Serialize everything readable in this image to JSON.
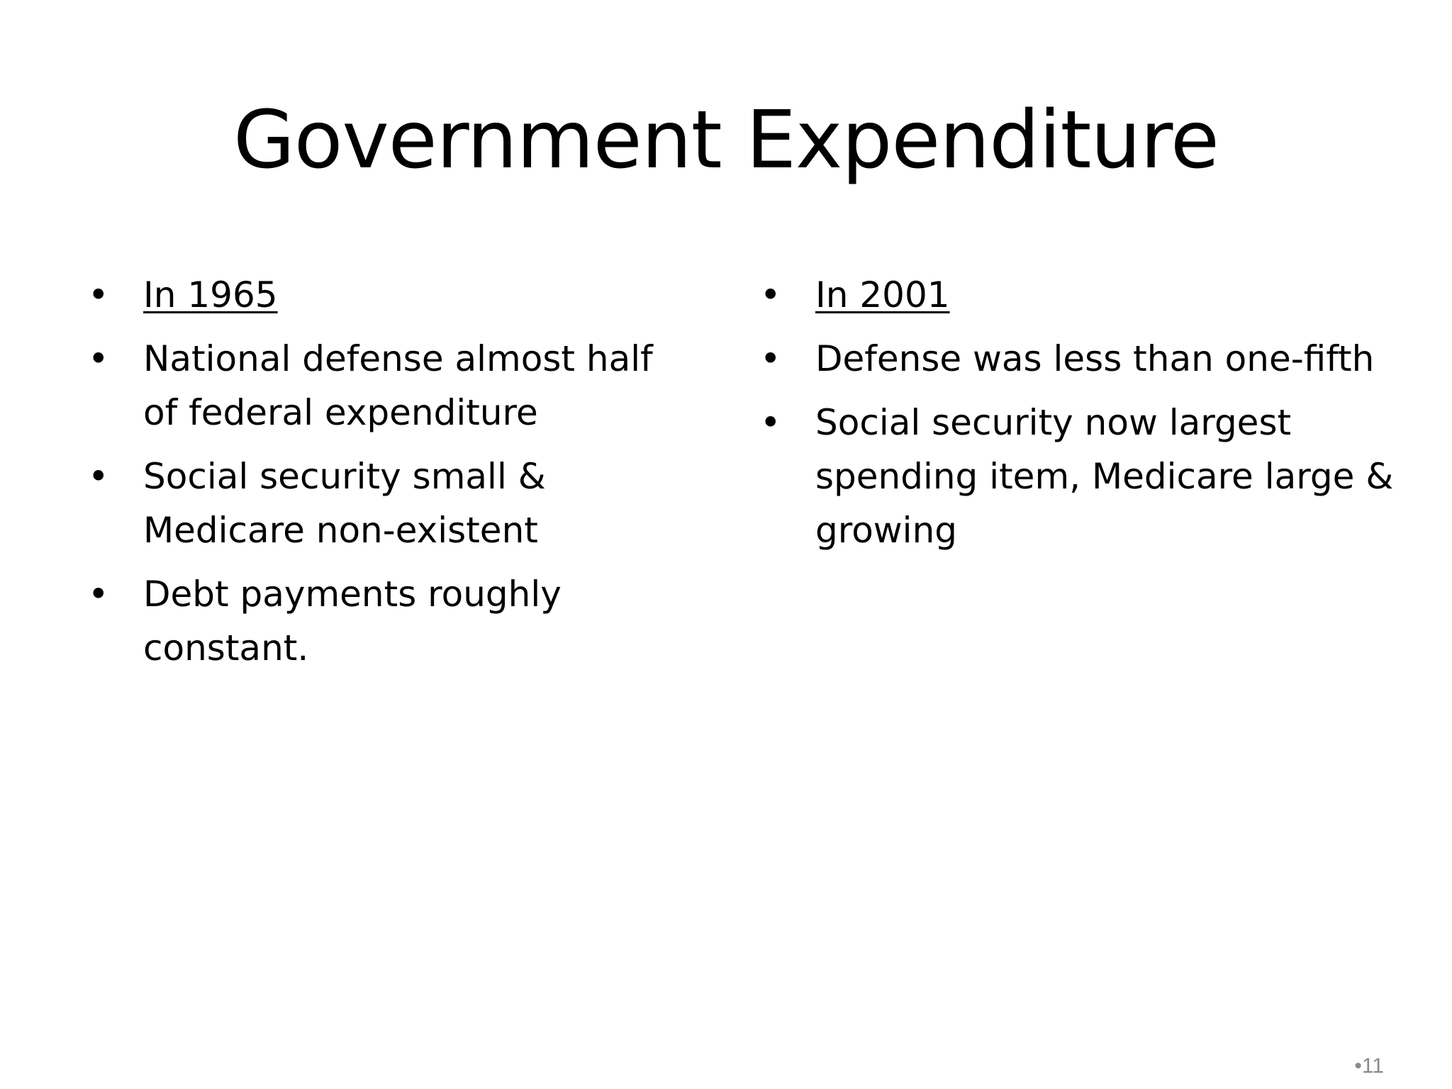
{
  "slide": {
    "title": "Government Expenditure",
    "bullet_glyph": "•",
    "left_column": {
      "items": [
        {
          "text": "In 1965",
          "underline": true
        },
        {
          "text": "National defense almost half of federal expenditure",
          "underline": false
        },
        {
          "text": "Social security small & Medicare non-existent",
          "underline": false
        },
        {
          "text": "Debt payments roughly constant.",
          "underline": false
        }
      ]
    },
    "right_column": {
      "items": [
        {
          "text": "In 2001",
          "underline": true
        },
        {
          "text": "Defense was less than one-fifth",
          "underline": false
        },
        {
          "text": "Social security now largest spending item, Medicare large & growing",
          "underline": false
        }
      ]
    },
    "page_number": "•11"
  }
}
